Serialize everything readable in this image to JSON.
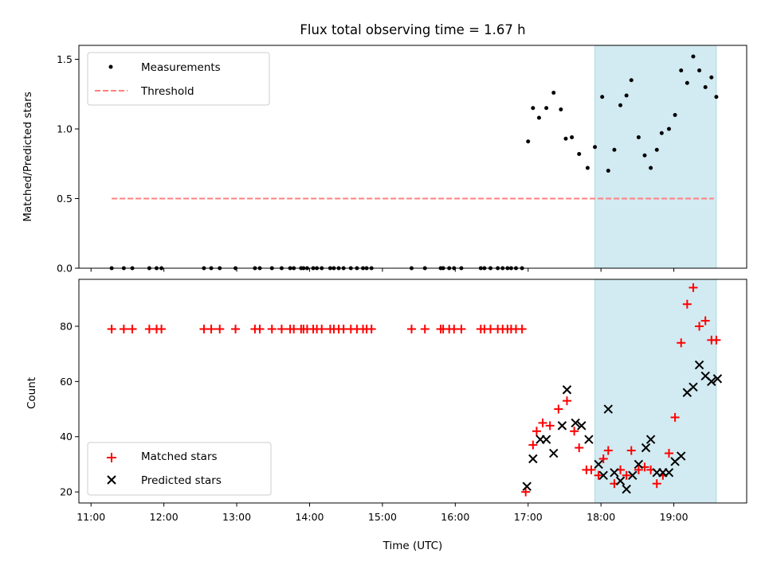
{
  "title": "Flux total observing time = 1.67 h",
  "colors": {
    "measurement": "#000000",
    "threshold": "#ff7f7f",
    "matched": "#ff0000",
    "predicted": "#000000",
    "highlight": "#add8e6"
  },
  "chart_data": [
    {
      "type": "scatter",
      "ylabel": "Matched/Predicted stars",
      "xlabel": "",
      "xlim": [
        "10:50",
        "20:00"
      ],
      "ylim": [
        0,
        1.6
      ],
      "yticks": [
        "0.0",
        "0.5",
        "1.0",
        "1.5"
      ],
      "xtick_labels_visible": false,
      "highlight_span": [
        "17:55",
        "19:35"
      ],
      "legend": {
        "location": "upper-left",
        "entries": [
          {
            "label": "Measurements",
            "kind": "dot"
          },
          {
            "label": "Threshold",
            "kind": "dashed-line"
          }
        ]
      },
      "threshold": {
        "name": "Threshold",
        "value": 0.5,
        "x_range": [
          "11:17",
          "19:33"
        ]
      },
      "series": [
        {
          "name": "Measurements",
          "x": [
            "11:17",
            "11:27",
            "11:34",
            "11:48",
            "11:54",
            "11:58",
            "12:33",
            "12:39",
            "12:46",
            "12:59",
            "13:15",
            "13:19",
            "13:29",
            "13:37",
            "13:44",
            "13:47",
            "13:53",
            "13:55",
            "13:58",
            "14:03",
            "14:06",
            "14:10",
            "14:17",
            "14:20",
            "14:24",
            "14:28",
            "14:34",
            "14:39",
            "14:44",
            "14:47",
            "14:51",
            "15:24",
            "15:35",
            "15:48",
            "15:50",
            "15:55",
            "15:59",
            "16:05",
            "16:21",
            "16:24",
            "16:29",
            "16:35",
            "16:39",
            "16:43",
            "16:46",
            "16:50",
            "16:55",
            "17:00",
            "17:04",
            "17:09",
            "17:15",
            "17:21",
            "17:27",
            "17:31",
            "17:36",
            "17:42",
            "17:49",
            "17:55",
            "18:01",
            "18:06",
            "18:11",
            "18:16",
            "18:21",
            "18:25",
            "18:31",
            "18:36",
            "18:41",
            "18:46",
            "18:50",
            "18:56",
            "19:01",
            "19:06",
            "19:11",
            "19:16",
            "19:21",
            "19:26",
            "19:31",
            "19:35"
          ],
          "y": [
            0,
            0,
            0,
            0,
            0,
            0,
            0,
            0,
            0,
            0,
            0,
            0,
            0,
            0,
            0,
            0,
            0,
            0,
            0,
            0,
            0,
            0,
            0,
            0,
            0,
            0,
            0,
            0,
            0,
            0,
            0,
            0,
            0,
            0,
            0,
            0,
            0,
            0,
            0,
            0,
            0,
            0,
            0,
            0,
            0,
            0,
            0,
            0.91,
            1.15,
            1.08,
            1.15,
            1.26,
            1.14,
            0.93,
            0.94,
            0.82,
            0.72,
            0.87,
            1.23,
            0.7,
            0.85,
            1.17,
            1.24,
            1.35,
            0.94,
            0.81,
            0.72,
            0.85,
            0.97,
            1.0,
            1.1,
            1.42,
            1.33,
            1.52,
            1.42,
            1.3,
            1.37,
            1.23
          ]
        }
      ]
    },
    {
      "type": "scatter",
      "ylabel": "Count",
      "xlabel": "Time (UTC)",
      "xlim": [
        "10:50",
        "20:00"
      ],
      "ylim": [
        16,
        97
      ],
      "yticks": [
        "20",
        "40",
        "60",
        "80"
      ],
      "xticks": [
        "11:00",
        "12:00",
        "13:00",
        "14:00",
        "15:00",
        "16:00",
        "17:00",
        "18:00",
        "19:00"
      ],
      "highlight_span": [
        "17:55",
        "19:35"
      ],
      "legend": {
        "location": "lower-left",
        "entries": [
          {
            "label": "Matched stars",
            "kind": "plus"
          },
          {
            "label": "Predicted stars",
            "kind": "cross"
          }
        ]
      },
      "series": [
        {
          "name": "Matched stars",
          "x": [
            "11:17",
            "11:27",
            "11:34",
            "11:48",
            "11:54",
            "11:58",
            "12:33",
            "12:39",
            "12:46",
            "12:59",
            "13:15",
            "13:19",
            "13:29",
            "13:37",
            "13:44",
            "13:47",
            "13:53",
            "13:55",
            "13:58",
            "14:03",
            "14:06",
            "14:10",
            "14:17",
            "14:20",
            "14:24",
            "14:28",
            "14:34",
            "14:39",
            "14:44",
            "14:47",
            "14:51",
            "15:24",
            "15:35",
            "15:48",
            "15:50",
            "15:55",
            "15:59",
            "16:05",
            "16:21",
            "16:24",
            "16:29",
            "16:35",
            "16:39",
            "16:43",
            "16:46",
            "16:50",
            "16:55",
            "16:58",
            "17:04",
            "17:07",
            "17:12",
            "17:18",
            "17:25",
            "17:32",
            "17:38",
            "17:42",
            "17:48",
            "17:52",
            "17:58",
            "18:02",
            "18:06",
            "18:11",
            "18:16",
            "18:21",
            "18:25",
            "18:31",
            "18:36",
            "18:41",
            "18:46",
            "18:51",
            "18:56",
            "19:01",
            "19:06",
            "19:11",
            "19:16",
            "19:21",
            "19:26",
            "19:31",
            "19:35"
          ],
          "y": [
            79,
            79,
            79,
            79,
            79,
            79,
            79,
            79,
            79,
            79,
            79,
            79,
            79,
            79,
            79,
            79,
            79,
            79,
            79,
            79,
            79,
            79,
            79,
            79,
            79,
            79,
            79,
            79,
            79,
            79,
            79,
            79,
            79,
            79,
            79,
            79,
            79,
            79,
            79,
            79,
            79,
            79,
            79,
            79,
            79,
            79,
            79,
            20,
            37,
            42,
            45,
            44,
            50,
            53,
            42,
            36,
            28,
            28,
            26,
            32,
            35,
            23,
            28,
            26,
            35,
            28,
            29,
            28,
            23,
            26,
            34,
            47,
            74,
            88,
            94,
            80,
            82,
            75,
            75
          ]
        },
        {
          "name": "Predicted stars",
          "x": [
            "16:59",
            "17:04",
            "17:10",
            "17:15",
            "17:21",
            "17:28",
            "17:32",
            "17:39",
            "17:44",
            "17:50",
            "17:58",
            "18:02",
            "18:06",
            "18:11",
            "18:16",
            "18:21",
            "18:26",
            "18:31",
            "18:37",
            "18:41",
            "18:46",
            "18:51",
            "18:56",
            "19:01",
            "19:06",
            "19:11",
            "19:16",
            "19:21",
            "19:26",
            "19:31",
            "19:36"
          ],
          "y": [
            22,
            32,
            39,
            39,
            34,
            44,
            57,
            45,
            44,
            39,
            30,
            26,
            50,
            27,
            24,
            21,
            26,
            30,
            36,
            39,
            27,
            27,
            27,
            31,
            33,
            56,
            58,
            66,
            62,
            60,
            61
          ]
        }
      ]
    }
  ]
}
